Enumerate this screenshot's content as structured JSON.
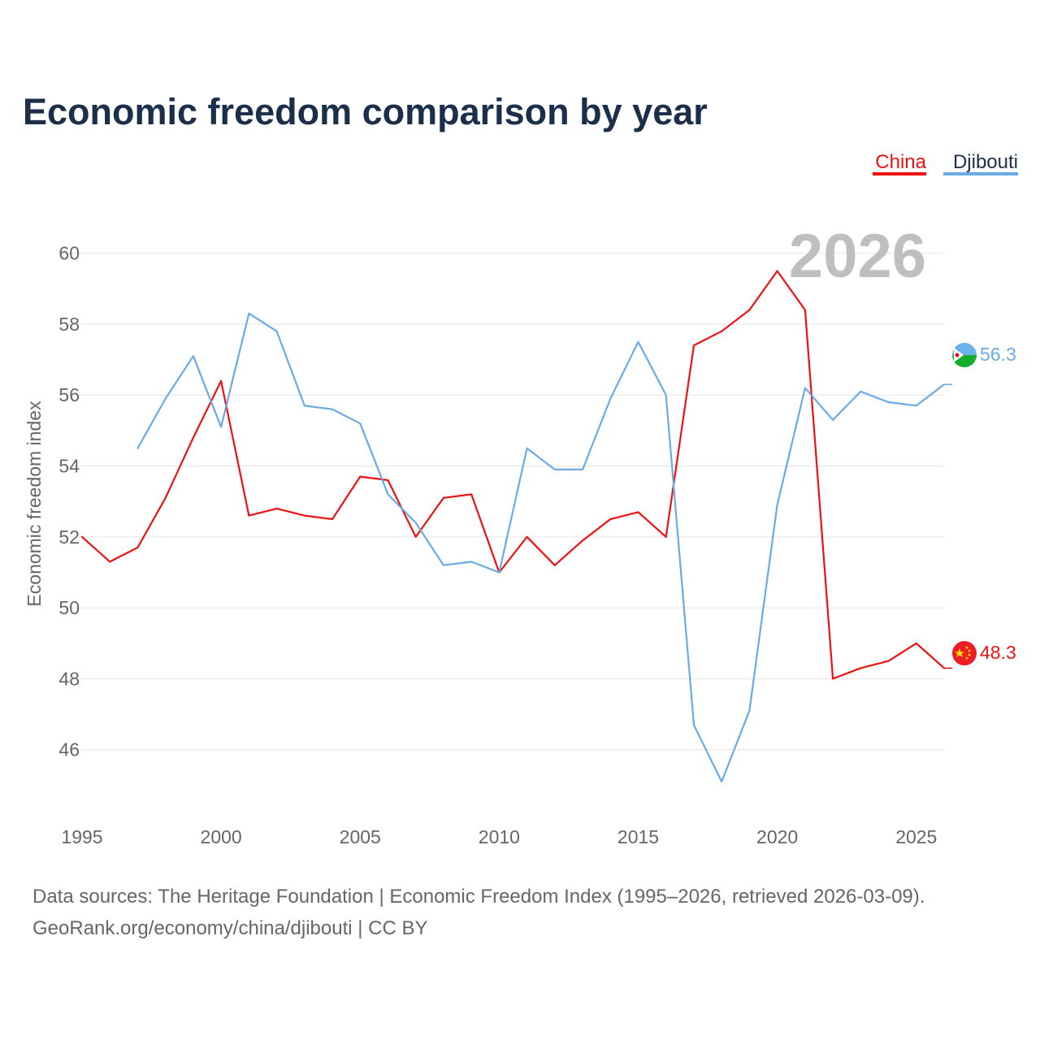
{
  "chart_data": {
    "type": "line",
    "title": "Economic freedom comparison by year",
    "ylabel": "Economic freedom index",
    "xlabel": "",
    "xlim": [
      1995,
      2026
    ],
    "ylim": [
      44,
      61
    ],
    "x_ticks": [
      1995,
      2000,
      2005,
      2010,
      2015,
      2020,
      2025
    ],
    "y_ticks": [
      46,
      48,
      50,
      52,
      54,
      56,
      58,
      60
    ],
    "current_year": "2026",
    "legend": [
      "China",
      "Djibouti"
    ],
    "series": [
      {
        "name": "China",
        "color": "#ee1111",
        "end_label": "48.3",
        "x": [
          1995,
          1996,
          1997,
          1998,
          1999,
          2000,
          2001,
          2002,
          2003,
          2004,
          2005,
          2006,
          2007,
          2008,
          2009,
          2010,
          2011,
          2012,
          2013,
          2014,
          2015,
          2016,
          2017,
          2018,
          2019,
          2020,
          2021,
          2022,
          2023,
          2024,
          2025,
          2026
        ],
        "values": [
          52.0,
          51.3,
          51.7,
          53.1,
          54.8,
          56.4,
          52.6,
          52.8,
          52.6,
          52.5,
          53.7,
          53.6,
          52.0,
          53.1,
          53.2,
          51.0,
          52.0,
          51.2,
          51.9,
          52.5,
          52.7,
          52.0,
          57.4,
          57.8,
          58.4,
          59.5,
          58.4,
          48.0,
          48.3,
          48.5,
          49.0,
          48.3
        ]
      },
      {
        "name": "Djibouti",
        "color": "#6aaae6",
        "end_label": "56.3",
        "x": [
          1997,
          1998,
          1999,
          2000,
          2001,
          2002,
          2003,
          2004,
          2005,
          2006,
          2007,
          2008,
          2009,
          2010,
          2011,
          2012,
          2013,
          2014,
          2015,
          2016,
          2017,
          2018,
          2019,
          2020,
          2021,
          2022,
          2023,
          2024,
          2025,
          2026
        ],
        "values": [
          54.5,
          55.9,
          57.1,
          55.1,
          58.3,
          57.8,
          55.7,
          55.6,
          55.2,
          53.2,
          52.4,
          51.2,
          51.3,
          51.0,
          54.5,
          53.9,
          53.9,
          55.9,
          57.5,
          56.0,
          46.7,
          45.1,
          47.1,
          52.9,
          56.2,
          55.3,
          56.1,
          55.8,
          55.7,
          56.3
        ]
      }
    ]
  },
  "footer": {
    "source_line": "Data sources: The Heritage Foundation | Economic Freedom Index (1995–2026, retrieved 2026-03-09).",
    "attribution_line": "GeoRank.org/economy/china/djibouti | CC BY"
  }
}
